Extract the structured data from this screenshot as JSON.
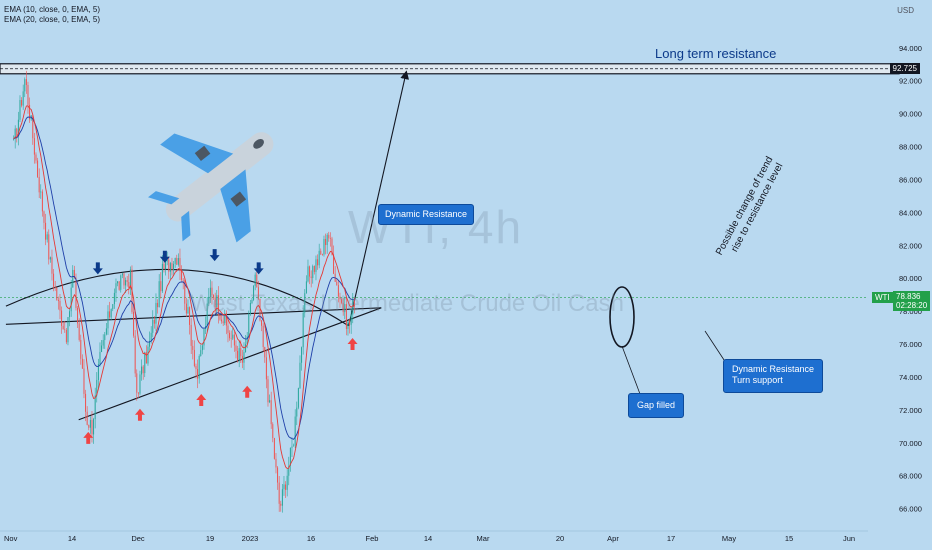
{
  "legend": {
    "ema1": "EMA (10, close, 0, EMA, 5)",
    "ema2": "EMA (20, close, 0, EMA, 5)"
  },
  "currency": "USD",
  "watermark": {
    "title": "WTI, 4h",
    "subtitle": "West Texas Intermediate Crude Oil Cash"
  },
  "annotations": {
    "long_term_resistance": "Long term resistance",
    "dynamic_resistance": "Dynamic Resistance",
    "gap_filled": "Gap filled",
    "dyn_turn_support_line1": "Dynamic Resistance",
    "dyn_turn_support_line2": "Turn support",
    "trend_line1": "Possible change of trend",
    "trend_line2": "rise to resistance level"
  },
  "price_tags": {
    "resistance_level": "92.725",
    "current_symbol": "WTI",
    "current_price": "78.836",
    "countdown": "02:28:20"
  },
  "colors": {
    "background": "#b9d9f0",
    "candle_up": "#26a69a",
    "candle_down": "#ef5350",
    "ema10": "#e53935",
    "ema20": "#1e3fa8",
    "current_price": "#22a04a",
    "arrow_up": "#ef4444",
    "arrow_down": "#0b3a8a",
    "annotation_box": "#1e6fd0"
  },
  "icons": [
    "airplane-icon",
    "arrow-up-icon",
    "arrow-down-icon"
  ],
  "chart_data": {
    "type": "candlestick",
    "title": "WTI, 4h",
    "ylim": [
      65,
      95
    ],
    "y_ticks": [
      "66.000",
      "68.000",
      "70.000",
      "72.000",
      "74.000",
      "76.000",
      "78.000",
      "80.000",
      "82.000",
      "84.000",
      "86.000",
      "88.000",
      "90.000",
      "92.000",
      "94.000"
    ],
    "x_ticks": [
      "Nov",
      "14",
      "Dec",
      "19",
      "2023",
      "16",
      "Feb",
      "14",
      "Mar",
      "20",
      "Apr",
      "17",
      "May",
      "15",
      "Jun"
    ],
    "series": [
      {
        "name": "EMA (10, close, 0, EMA, 5)"
      },
      {
        "name": "EMA (20, close, 0, EMA, 5)"
      }
    ],
    "price_path": [
      {
        "date": "2022-11-01",
        "close": 88.0
      },
      {
        "date": "2022-11-07",
        "close": 92.2
      },
      {
        "date": "2022-11-14",
        "close": 86.0
      },
      {
        "date": "2022-11-20",
        "close": 81.0
      },
      {
        "date": "2022-11-25",
        "close": 78.0
      },
      {
        "date": "2022-11-29",
        "close": 76.5
      },
      {
        "date": "2022-12-02",
        "close": 80.5
      },
      {
        "date": "2022-12-09",
        "close": 71.5
      },
      {
        "date": "2022-12-12",
        "close": 71.0
      },
      {
        "date": "2022-12-16",
        "close": 75.0
      },
      {
        "date": "2022-12-24",
        "close": 79.5
      },
      {
        "date": "2023-01-01",
        "close": 80.0
      },
      {
        "date": "2023-01-04",
        "close": 73.0
      },
      {
        "date": "2023-01-11",
        "close": 76.0
      },
      {
        "date": "2023-01-18",
        "close": 80.5
      },
      {
        "date": "2023-01-26",
        "close": 81.5
      },
      {
        "date": "2023-02-05",
        "close": 74.0
      },
      {
        "date": "2023-02-12",
        "close": 79.5
      },
      {
        "date": "2023-02-22",
        "close": 76.5
      },
      {
        "date": "2023-03-01",
        "close": 74.8
      },
      {
        "date": "2023-03-07",
        "close": 80.2
      },
      {
        "date": "2023-03-13",
        "close": 74.0
      },
      {
        "date": "2023-03-20",
        "close": 66.0
      },
      {
        "date": "2023-03-27",
        "close": 70.0
      },
      {
        "date": "2023-03-31",
        "close": 75.5
      },
      {
        "date": "2023-04-03",
        "close": 80.0
      },
      {
        "date": "2023-04-11",
        "close": 81.5
      },
      {
        "date": "2023-04-14",
        "close": 83.0
      },
      {
        "date": "2023-04-19",
        "close": 79.5
      },
      {
        "date": "2023-04-25",
        "close": 77.0
      },
      {
        "date": "2023-04-28",
        "close": 78.84
      }
    ],
    "levels": [
      {
        "label": "Long term resistance",
        "price": 92.725
      }
    ],
    "trendlines": [
      {
        "name": "rising support",
        "from": {
          "date": "2022-12-05",
          "price": 71.4
        },
        "to": {
          "date": "2023-05-12",
          "price": 78.2
        }
      },
      {
        "name": "lower channel",
        "from": {
          "date": "2022-10-28",
          "price": 77.2
        },
        "to": {
          "date": "2023-05-12",
          "price": 78.2
        }
      },
      {
        "name": "trend to resistance",
        "from": {
          "date": "2023-04-25",
          "price": 77.1
        },
        "to": {
          "date": "2023-05-25",
          "price": 92.5
        }
      }
    ],
    "curve": {
      "name": "Dynamic Resistance",
      "from": {
        "date": "2022-10-28",
        "price": 78.3
      },
      "peak": {
        "date": "2023-01-29",
        "price": 80.5
      },
      "to": {
        "date": "2023-04-25",
        "price": 77.1
      }
    },
    "markers_up": [
      {
        "date": "2022-12-10",
        "price": 70.3
      },
      {
        "date": "2023-01-06",
        "price": 71.7
      },
      {
        "date": "2023-02-07",
        "price": 72.6
      },
      {
        "date": "2023-03-03",
        "price": 73.1
      },
      {
        "date": "2023-04-27",
        "price": 76.0
      }
    ],
    "markers_down": [
      {
        "date": "2022-12-15",
        "price": 80.6
      },
      {
        "date": "2023-01-19",
        "price": 81.3
      },
      {
        "date": "2023-02-14",
        "price": 81.4
      },
      {
        "date": "2023-03-09",
        "price": 80.6
      }
    ],
    "current_price": 78.836
  }
}
